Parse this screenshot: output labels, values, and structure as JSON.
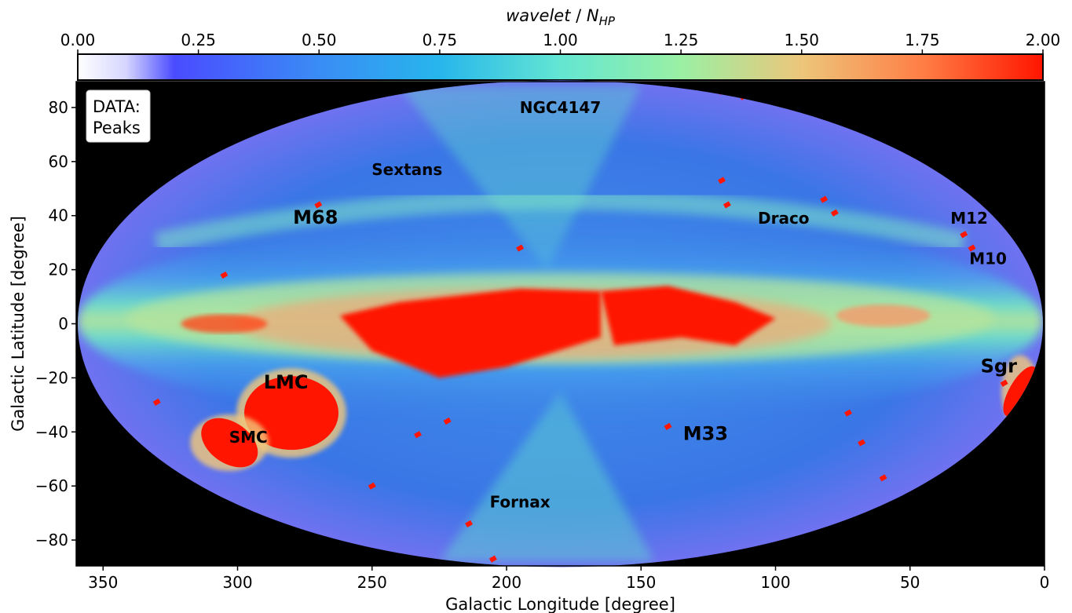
{
  "chart_data": {
    "type": "heatmap",
    "projection": "mollweide",
    "colorbar": {
      "label_main": "wavelet",
      "label_sep": " / ",
      "label_sym": "N",
      "label_sub": "HP",
      "range": [
        0.0,
        2.0
      ],
      "ticks": [
        "0.00",
        "0.25",
        "0.50",
        "0.75",
        "1.00",
        "1.25",
        "1.50",
        "1.75",
        "2.00"
      ],
      "colormap": "rainbow",
      "placement": "top"
    },
    "xlabel": "Galactic Longitude [degree]",
    "ylabel": "Galactic Latitude [degree]",
    "xlim": [
      360,
      0
    ],
    "ylim": [
      -90,
      90
    ],
    "xticks": [
      "350",
      "300",
      "250",
      "200",
      "150",
      "100",
      "50",
      "0"
    ],
    "xtick_values": [
      350,
      300,
      250,
      200,
      150,
      100,
      50,
      0
    ],
    "yticks": [
      "80",
      "60",
      "40",
      "20",
      "0",
      "−20",
      "−40",
      "−60",
      "−80"
    ],
    "ytick_values": [
      80,
      60,
      40,
      20,
      0,
      -20,
      -40,
      -60,
      -80
    ],
    "background_color": "#000000",
    "legend_box": {
      "line1": "DATA:",
      "line2": "Peaks",
      "placement": "top-left"
    },
    "annotations": [
      {
        "text": "NGC4147",
        "l": 180,
        "b": 78,
        "size": "small"
      },
      {
        "text": "Sextans",
        "l": 237,
        "b": 55,
        "size": "small"
      },
      {
        "text": "M68",
        "l": 271,
        "b": 37,
        "size": "large"
      },
      {
        "text": "Draco",
        "l": 97,
        "b": 37,
        "size": "small"
      },
      {
        "text": "M12",
        "l": 28,
        "b": 37,
        "size": "small"
      },
      {
        "text": "M10",
        "l": 21,
        "b": 22,
        "size": "small"
      },
      {
        "text": "Sgr",
        "l": 17,
        "b": -18,
        "size": "large"
      },
      {
        "text": "LMC",
        "l": 282,
        "b": -24,
        "size": "large"
      },
      {
        "text": "SMC",
        "l": 296,
        "b": -44,
        "size": "small"
      },
      {
        "text": "M33",
        "l": 126,
        "b": -43,
        "size": "large"
      },
      {
        "text": "Fornax",
        "l": 195,
        "b": -68,
        "size": "small"
      }
    ],
    "regions": [
      {
        "name": "Galactic bulge",
        "l": 185,
        "b": -1,
        "value": 2.0
      },
      {
        "name": "LMC",
        "l": 280,
        "b": -33,
        "value": 2.0
      },
      {
        "name": "SMC",
        "l": 303,
        "b": -44,
        "value": 2.0
      },
      {
        "name": "Sgr stream",
        "l": 9,
        "b": -25,
        "value": 2.0
      },
      {
        "name": "Disk band",
        "l": 180,
        "b": 0,
        "value": 0.85
      },
      {
        "name": "High-latitude field",
        "l": 180,
        "b": 60,
        "value": 0.4
      }
    ]
  }
}
